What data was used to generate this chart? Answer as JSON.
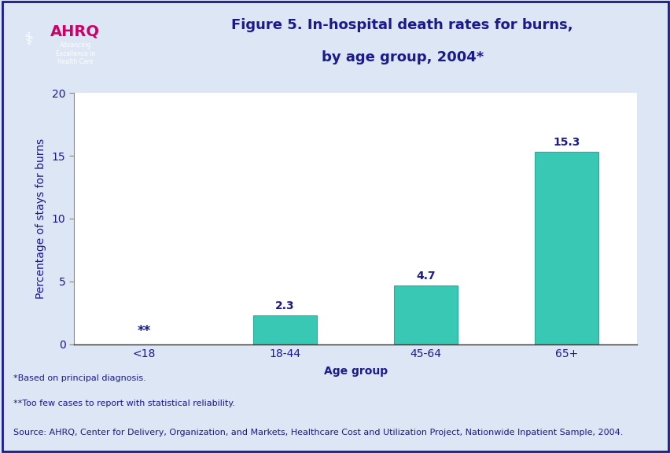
{
  "categories": [
    "<18",
    "18-44",
    "45-64",
    "65+"
  ],
  "values": [
    null,
    2.3,
    4.7,
    15.3
  ],
  "bar_color": "#38c8b4",
  "bar_edge_color": "#2aab99",
  "title_line1": "Figure 5. In-hospital death rates for burns,",
  "title_line2": "by age group, 2004*",
  "title_color": "#1a1a8c",
  "xlabel": "Age group",
  "ylabel": "Percentage of stays for burns",
  "axis_label_color": "#1a1a8c",
  "tick_label_color": "#1a1a8c",
  "ylim": [
    0,
    20
  ],
  "yticks": [
    0,
    5,
    10,
    15,
    20
  ],
  "figure_bg_color": "#dce6f5",
  "header_bg_color": "#f0f4ff",
  "chart_bg_color": "#f0f4ff",
  "plot_bg_color": "#ffffff",
  "footnote1": "*Based on principal diagnosis.",
  "footnote2": "**Too few cases to report with statistical reliability.",
  "footnote3": "Source: AHRQ, Center for Delivery, Organization, and Markets, Healthcare Cost and Utilization Project, Nationwide Inpatient Sample, 2004.",
  "footnote_color": "#1a1a8c",
  "title_fontsize": 13,
  "axis_fontsize": 10,
  "tick_fontsize": 10,
  "bar_label_color": "#1a1a8c",
  "bar_label_fontsize": 10,
  "special_label": "**",
  "divider_color": "#1a1a8c",
  "border_color": "#1a1a8c",
  "logo_box_color": "#1a7ab5",
  "logo_text_color": "#ffffff",
  "footnote_fontsize": 8
}
